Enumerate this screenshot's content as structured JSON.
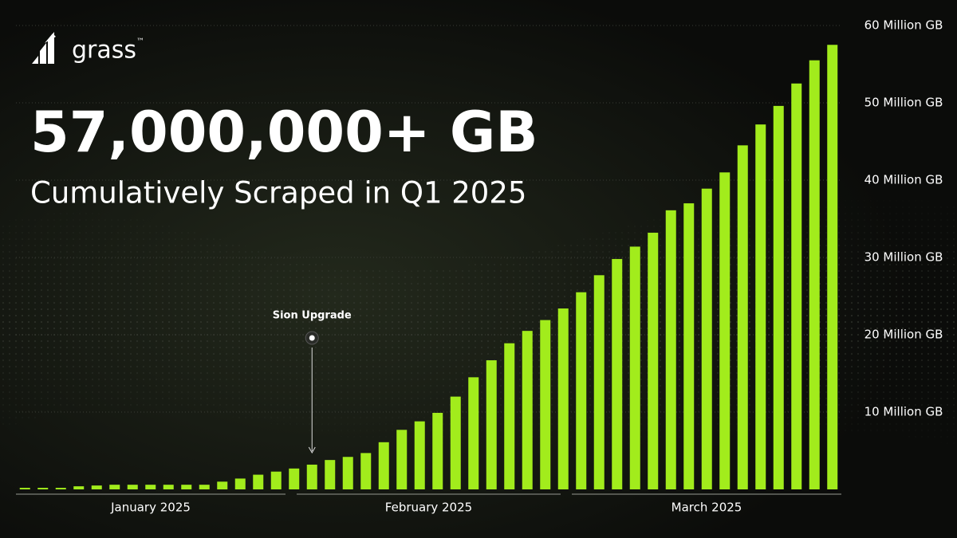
{
  "brand": {
    "name": "grass",
    "mark": "™"
  },
  "headline": "57,000,000+ GB",
  "subheadline": "Cumulatively Scraped in Q1 2025",
  "chart_data": {
    "type": "bar",
    "color": "#a2ec1c",
    "months": [
      "January 2025",
      "February 2025",
      "March 2025"
    ],
    "annotation": "Sion Upgrade",
    "values": [
      200000,
      200000,
      200000,
      400000,
      500000,
      600000,
      600000,
      600000,
      600000,
      600000,
      600000,
      1000000,
      1400000,
      1900000,
      2300000,
      2700000,
      3200000,
      3800000,
      4200000,
      4700000,
      6100000,
      7700000,
      8800000,
      9900000,
      12000000,
      14500000,
      16700000,
      18900000,
      20500000,
      21900000,
      23400000,
      25500000,
      27700000,
      29800000,
      31400000,
      33200000,
      36100000,
      37000000,
      38900000,
      41000000,
      44500000,
      47200000,
      49600000,
      52500000,
      55500000,
      57500000
    ],
    "ylim": [
      0,
      60000000
    ],
    "yticks": [
      {
        "value": 10000000,
        "label": "10 Million GB"
      },
      {
        "value": 20000000,
        "label": "20 Million GB"
      },
      {
        "value": 30000000,
        "label": "30 Million GB"
      },
      {
        "value": 40000000,
        "label": "40 Million GB"
      },
      {
        "value": 50000000,
        "label": "50 Million GB"
      },
      {
        "value": 60000000,
        "label": "60 Million GB"
      }
    ],
    "grid": true
  }
}
